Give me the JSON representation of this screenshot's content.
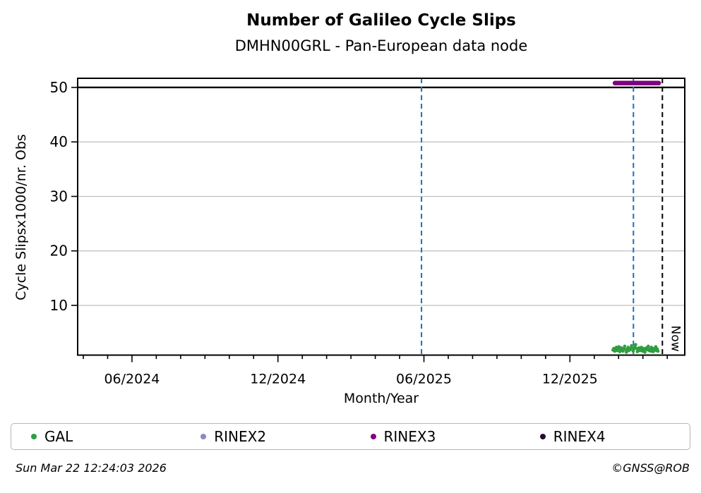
{
  "header": {
    "title": "Number of Galileo Cycle Slips",
    "subtitle": "DMHN00GRL - Pan-European data node"
  },
  "footer": {
    "timestamp": "Sun Mar 22 12:24:03 2026",
    "copyright": "©GNSS@ROB"
  },
  "legend": [
    {
      "label": "GAL",
      "color": "#2f9e3f"
    },
    {
      "label": "RINEX2",
      "color": "#8a8ac4"
    },
    {
      "label": "RINEX3",
      "color": "#800080"
    },
    {
      "label": "RINEX4",
      "color": "#260c31"
    }
  ],
  "chart_data": {
    "type": "scatter",
    "title": "Number of Galileo Cycle Slips",
    "subtitle": "DMHN00GRL - Pan-European data node",
    "xlabel": "Month/Year",
    "ylabel": "Cycle Slipsx1000/nr. Obs",
    "grid": true,
    "grid_color": "#bfbfbf",
    "x_axis": {
      "unit": "months since 2024-04-01",
      "range": [
        -0.232,
        24.72
      ],
      "minor_tick_step": 1,
      "minor_tick_from": 0,
      "minor_tick_to": 24,
      "major_ticks": [
        {
          "m": 2,
          "label": "06/2024"
        },
        {
          "m": 8,
          "label": "12/2024"
        },
        {
          "m": 14,
          "label": "06/2025"
        },
        {
          "m": 20,
          "label": "12/2025"
        }
      ]
    },
    "y_axis": {
      "range": [
        0.87,
        51.68
      ],
      "ticks": [
        10,
        20,
        30,
        40,
        50
      ]
    },
    "threshold_line": {
      "y": 50,
      "color": "#000000",
      "width": 2.4
    },
    "vlines": [
      {
        "m": 13.9,
        "color": "#1e6fc0",
        "width": 2,
        "dash": "7,5",
        "label": ""
      },
      {
        "m": 22.61,
        "color": "#1e6fc0",
        "width": 2,
        "dash": "7,5",
        "label": ""
      },
      {
        "m": 23.8,
        "color": "#000000",
        "width": 2,
        "dash": "7,5",
        "label": "Now"
      }
    ],
    "series": [
      {
        "name": "GAL",
        "type": "scatter",
        "color": "#2f9e3f",
        "marker_radius": 2.3,
        "points": [
          [
            21.77,
            1.8
          ],
          [
            21.8,
            2.1
          ],
          [
            21.84,
            1.6
          ],
          [
            21.87,
            2.0
          ],
          [
            21.91,
            2.3
          ],
          [
            21.94,
            1.7
          ],
          [
            21.98,
            2.1
          ],
          [
            22.01,
            2.4
          ],
          [
            22.05,
            1.5
          ],
          [
            22.08,
            1.9
          ],
          [
            22.11,
            2.2
          ],
          [
            22.15,
            1.8
          ],
          [
            22.18,
            1.6
          ],
          [
            22.22,
            2.1
          ],
          [
            22.25,
            2.5
          ],
          [
            22.29,
            1.9
          ],
          [
            22.32,
            1.4
          ],
          [
            22.36,
            2.0
          ],
          [
            22.39,
            2.3
          ],
          [
            22.42,
            1.7
          ],
          [
            22.46,
            2.1
          ],
          [
            22.49,
            1.9
          ],
          [
            22.53,
            2.6
          ],
          [
            22.56,
            2.2
          ],
          [
            22.6,
            1.6
          ],
          [
            22.63,
            2.0
          ],
          [
            22.67,
            2.4
          ],
          [
            22.7,
            2.8
          ],
          [
            22.73,
            2.1
          ],
          [
            22.77,
            1.5
          ],
          [
            22.8,
            1.9
          ],
          [
            22.84,
            2.2
          ],
          [
            22.87,
            1.7
          ],
          [
            22.91,
            2.0
          ],
          [
            22.94,
            2.3
          ],
          [
            22.98,
            1.6
          ],
          [
            23.01,
            1.9
          ],
          [
            23.04,
            2.1
          ],
          [
            23.08,
            1.4
          ],
          [
            23.11,
            1.8
          ],
          [
            23.15,
            2.2
          ],
          [
            23.18,
            1.9
          ],
          [
            23.22,
            2.5
          ],
          [
            23.25,
            1.7
          ],
          [
            23.28,
            2.0
          ],
          [
            23.32,
            1.6
          ],
          [
            23.35,
            2.3
          ],
          [
            23.39,
            1.9
          ],
          [
            23.42,
            1.5
          ],
          [
            23.46,
            2.1
          ],
          [
            23.49,
            1.8
          ],
          [
            23.53,
            2.4
          ],
          [
            23.56,
            1.7
          ],
          [
            23.59,
            2.0
          ],
          [
            23.62,
            1.6
          ]
        ]
      },
      {
        "name": "RINEX3",
        "type": "segment",
        "color": "#800080",
        "line_width": 6.5,
        "m_start": 21.85,
        "m_end": 23.65,
        "y": 50.8
      }
    ],
    "now_label": {
      "text": "Now",
      "m": 23.8,
      "font_size": 17
    }
  }
}
